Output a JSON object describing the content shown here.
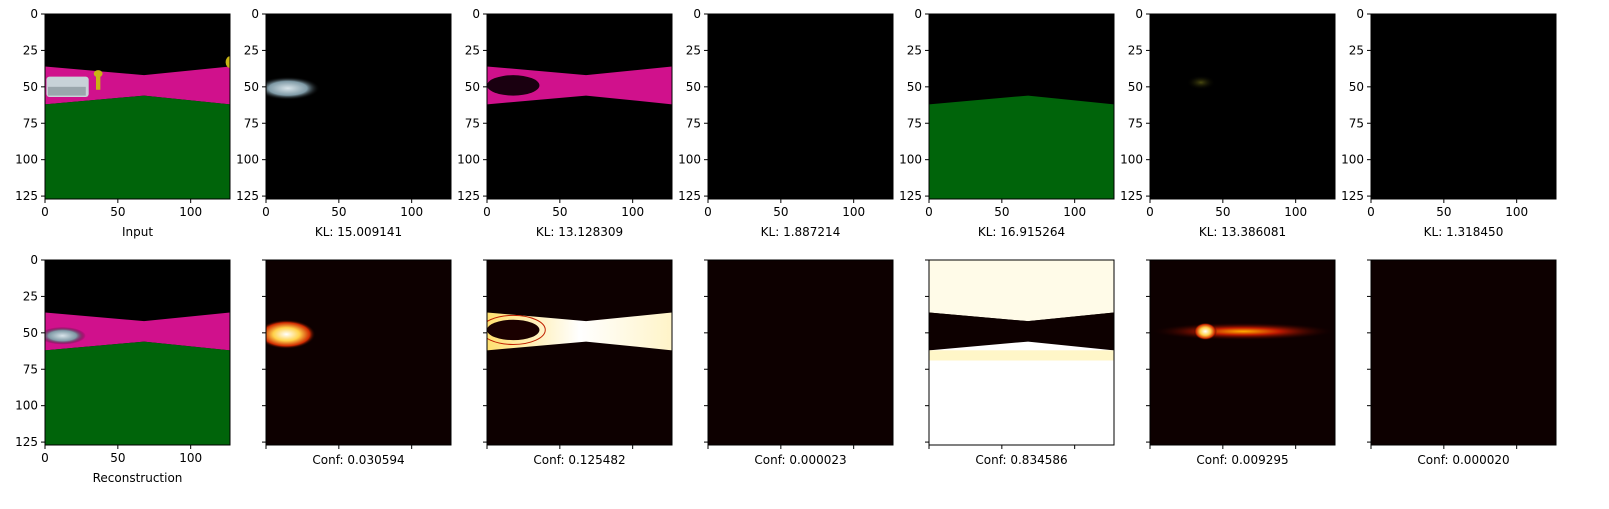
{
  "figure": {
    "axis": {
      "xlim": [
        0,
        127
      ],
      "ylim": [
        127,
        0
      ],
      "xticks": [
        0,
        50,
        100
      ],
      "yticks": [
        0,
        25,
        50,
        75,
        100,
        125
      ]
    },
    "top_row": {
      "panels": [
        {
          "caption": "Input",
          "content": "input"
        },
        {
          "caption": "KL: 15.009141",
          "content": "car_only"
        },
        {
          "caption": "KL: 13.128309",
          "content": "road_only"
        },
        {
          "caption": "KL: 1.887214",
          "content": "empty"
        },
        {
          "caption": "KL: 16.915264",
          "content": "grass_only"
        },
        {
          "caption": "KL: 13.386081",
          "content": "faint_blob"
        },
        {
          "caption": "KL: 1.318450",
          "content": "empty"
        }
      ]
    },
    "bottom_row": {
      "panels": [
        {
          "caption": "Reconstruction",
          "content": "reconstruction"
        },
        {
          "caption": "Conf: 0.030594",
          "content": "heat_car"
        },
        {
          "caption": "Conf: 0.125482",
          "content": "heat_road"
        },
        {
          "caption": "Conf: 0.000023",
          "content": "heat_empty"
        },
        {
          "caption": "Conf: 0.834586",
          "content": "heat_grass"
        },
        {
          "caption": "Conf: 0.009295",
          "content": "heat_blob"
        },
        {
          "caption": "Conf: 0.000020",
          "content": "heat_empty"
        }
      ]
    },
    "colors": {
      "sky": "#000000",
      "road": "#d0118c",
      "grass": "#00640a",
      "car": "#c8d2d8",
      "sign": "#c8b414",
      "heat_low": "#0d0000",
      "heat_high": "#ffffff"
    }
  }
}
